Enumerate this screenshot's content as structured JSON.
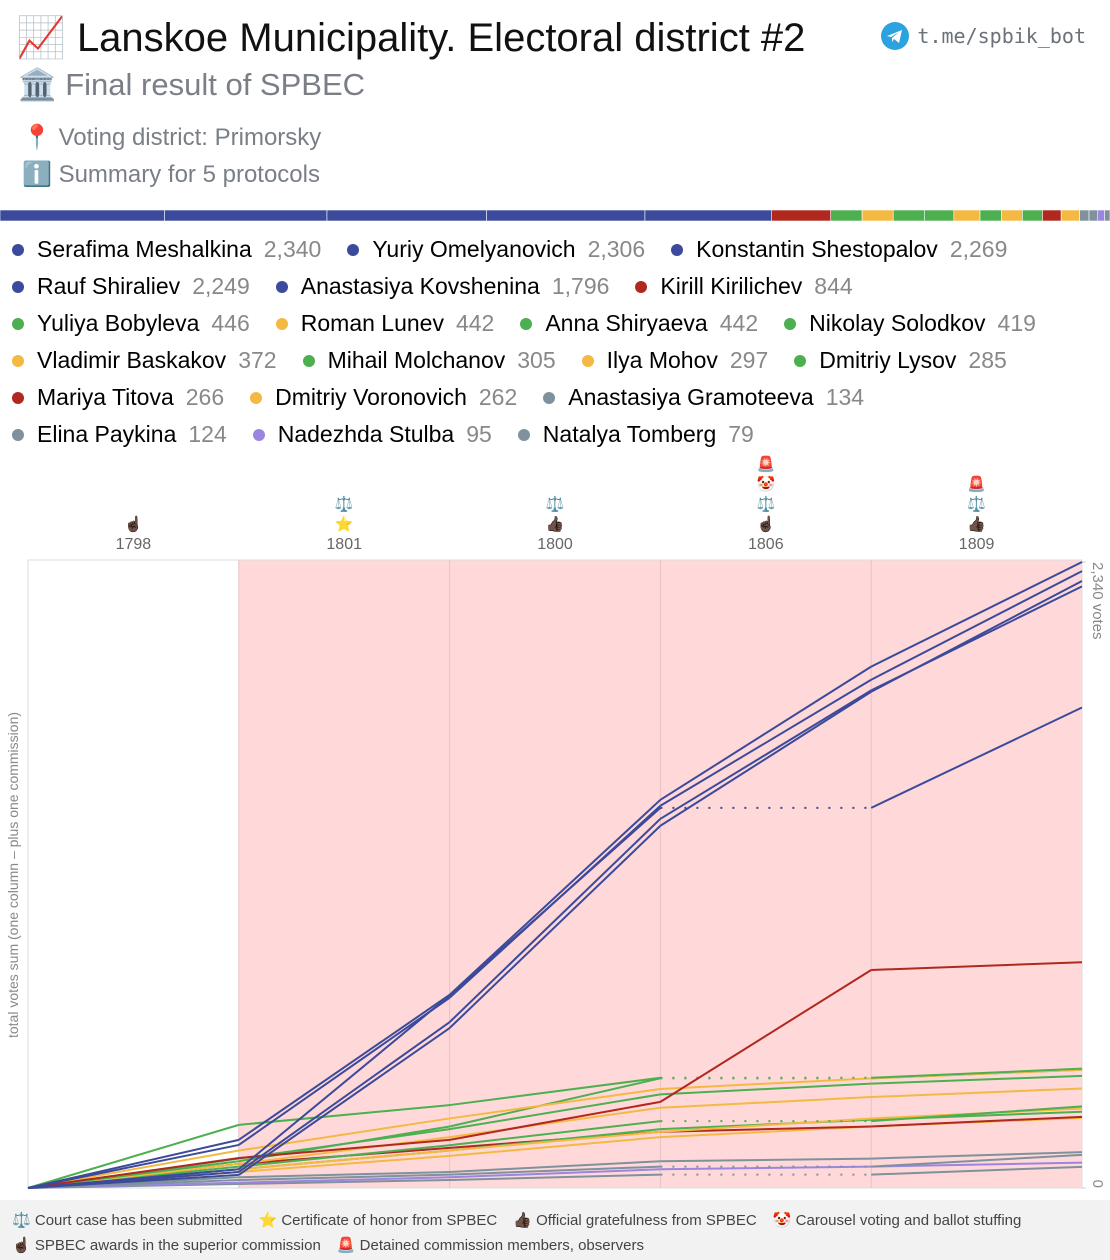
{
  "header": {
    "title_icon": "📈",
    "title": "Lanskoe Municipality. Electoral district #2",
    "link": "t.me/spbik_bot",
    "subtitle_icon": "🏛️",
    "subtitle": "Final result of SPBEC",
    "district_icon": "📍",
    "district": "Voting district: Primorsky",
    "summary_icon": "ℹ️",
    "summary": "Summary for 5 protocols"
  },
  "chart_data": {
    "type": "line",
    "categories": [
      "1798",
      "1801",
      "1800",
      "1806",
      "1809"
    ],
    "category_icons": [
      [
        "☝🏿"
      ],
      [
        "⚖️",
        "⭐"
      ],
      [
        "⚖️",
        "👍🏿"
      ],
      [
        "🚨",
        "🤡",
        "⚖️",
        "☝🏿"
      ],
      [
        "🚨",
        "⚖️",
        "👍🏿"
      ]
    ],
    "column_colors": [
      "#ffffff",
      "#ffd9d9",
      "#ffd9d9",
      "#ffd9d9",
      "#ffd9d9"
    ],
    "ylabel": "total votes sum (one column – plus one commission)",
    "ylim": [
      0,
      2340
    ],
    "yticks": [
      0,
      {
        "value": 2340,
        "label": "2,340 votes"
      }
    ],
    "series": [
      {
        "name": "Serafima Meshalkina",
        "color": "#3b4a9a",
        "total": 2340,
        "total_label": "2,340",
        "values": [
          180,
          542,
          729,
          498,
          391
        ]
      },
      {
        "name": "Yuriy Omelyanovich",
        "color": "#3b4a9a",
        "total": 2306,
        "total_label": "2,306",
        "values": [
          161,
          550,
          718,
          471,
          406
        ]
      },
      {
        "name": "Konstantin Shestopalov",
        "color": "#3b4a9a",
        "total": 2269,
        "total_label": "2,269",
        "values": [
          49,
          549,
          756,
          501,
          414
        ]
      },
      {
        "name": "Rauf Shiraliev",
        "color": "#3b4a9a",
        "total": 2249,
        "total_label": "2,249",
        "values": [
          60,
          560,
          760,
          480,
          389
        ]
      },
      {
        "name": "Anastasiya Kovshenina",
        "color": "#3b4a9a",
        "total": 1796,
        "total_label": "1,796",
        "values": [
          70,
          650,
          701,
          0,
          375
        ]
      },
      {
        "name": "Kirill Kirilichev",
        "color": "#b0281e",
        "total": 844,
        "total_label": "844",
        "values": [
          112,
          68,
          142,
          493,
          29
        ]
      },
      {
        "name": "Yuliya Bobyleva",
        "color": "#4caf50",
        "total": 446,
        "total_label": "446",
        "values": [
          236,
          74,
          102,
          0,
          34
        ]
      },
      {
        "name": "Roman Lunev",
        "color": "#f4b942",
        "total": 442,
        "total_label": "442",
        "values": [
          140,
          120,
          110,
          40,
          32
        ]
      },
      {
        "name": "Anna Shiryaeva",
        "color": "#4caf50",
        "total": 442,
        "total_label": "442",
        "values": [
          100,
          130,
          180,
          0,
          32
        ]
      },
      {
        "name": "Nikolay Solodkov",
        "color": "#4caf50",
        "total": 419,
        "total_label": "419",
        "values": [
          110,
          110,
          130,
          40,
          29
        ]
      },
      {
        "name": "Vladimir Baskakov",
        "color": "#f4b942",
        "total": 372,
        "total_label": "372",
        "values": [
          90,
          100,
          110,
          40,
          32
        ]
      },
      {
        "name": "Mihail Molchanov",
        "color": "#4caf50",
        "total": 305,
        "total_label": "305",
        "values": [
          80,
          80,
          90,
          0,
          55
        ]
      },
      {
        "name": "Ilya Mohov",
        "color": "#f4b942",
        "total": 297,
        "total_label": "297",
        "values": [
          70,
          70,
          70,
          50,
          37
        ]
      },
      {
        "name": "Dmitriy Lysov",
        "color": "#4caf50",
        "total": 285,
        "total_label": "285",
        "values": [
          70,
          70,
          80,
          35,
          30
        ]
      },
      {
        "name": "Mariya Titova",
        "color": "#b0281e",
        "total": 266,
        "total_label": "266",
        "values": [
          90,
          60,
          60,
          20,
          36
        ]
      },
      {
        "name": "Dmitriy Voronovich",
        "color": "#f4b942",
        "total": 262,
        "total_label": "262",
        "values": [
          60,
          60,
          70,
          40,
          32
        ]
      },
      {
        "name": "Anastasiya Gramoteeva",
        "color": "#7f919c",
        "total": 134,
        "total_label": "134",
        "values": [
          40,
          20,
          40,
          10,
          24
        ]
      },
      {
        "name": "Elina Paykina",
        "color": "#7f919c",
        "total": 124,
        "total_label": "124",
        "values": [
          30,
          20,
          30,
          0,
          44
        ]
      },
      {
        "name": "Nadezhda Stulba",
        "color": "#9a86e0",
        "total": 95,
        "total_label": "95",
        "values": [
          20,
          20,
          30,
          10,
          15
        ]
      },
      {
        "name": "Natalya Tomberg",
        "color": "#7f919c",
        "total": 79,
        "total_label": "79",
        "values": [
          15,
          15,
          20,
          0,
          29
        ]
      }
    ]
  },
  "footer": [
    {
      "icon": "⚖️",
      "text": "Court case has been submitted"
    },
    {
      "icon": "⭐",
      "text": "Certificate of honor from SPBEC"
    },
    {
      "icon": "👍🏿",
      "text": "Official gratefulness from SPBEC"
    },
    {
      "icon": "🤡",
      "text": "Carousel voting and ballot stuffing"
    },
    {
      "icon": "☝🏿",
      "text": "SPBEC awards in the superior commission"
    },
    {
      "icon": "🚨",
      "text": "Detained commission members, observers"
    }
  ]
}
